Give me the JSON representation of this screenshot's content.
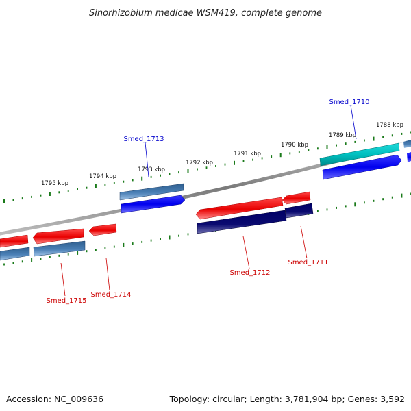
{
  "title": "Sinorhizobium medicae WSM419, complete genome",
  "footer": {
    "accession": "Accession: NC_009636",
    "topology": "Topology: circular; Length: 3,781,904 bp; Genes: 3,592"
  },
  "ticks": [
    "1795 kbp",
    "1794 kbp",
    "1793 kbp",
    "1792 kbp",
    "1791 kbp",
    "1790 kbp",
    "1789 kbp",
    "1788 kbp"
  ],
  "genes": {
    "smed_1710": "Smed_1710",
    "smed_1711": "Smed_1711",
    "smed_1712": "Smed_1712",
    "smed_1713": "Smed_1713",
    "smed_1714": "Smed_1714",
    "smed_1715": "Smed_1715"
  },
  "colors": {
    "forward_label": "#0000cc",
    "reverse_label": "#cc0000",
    "tick": "#1a7a1a",
    "backbone": "#7a7a7a"
  }
}
